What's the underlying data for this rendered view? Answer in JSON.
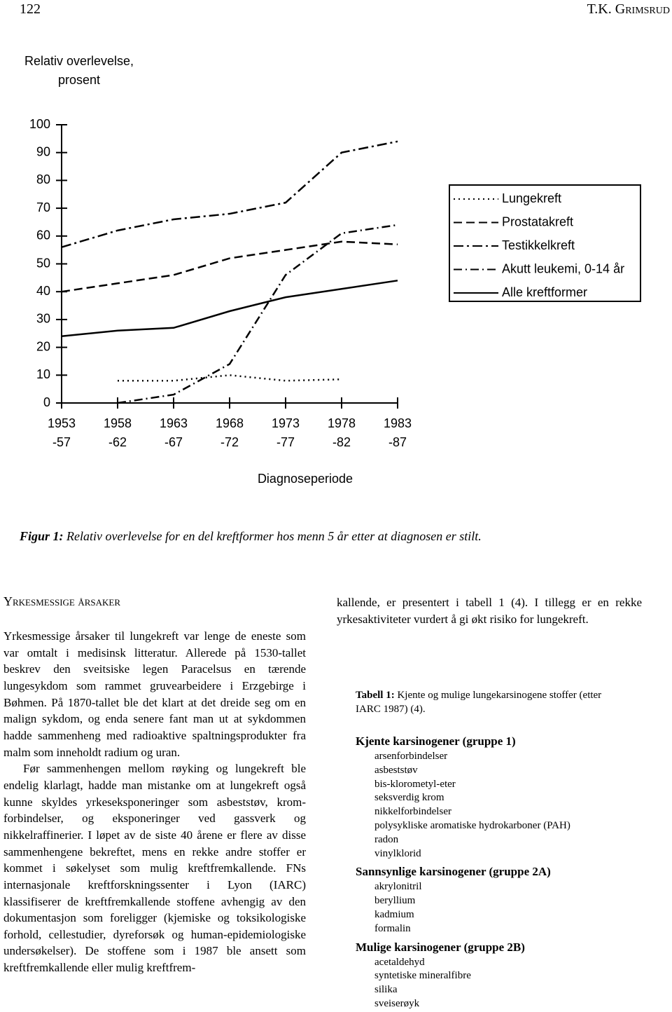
{
  "header": {
    "page_number": "122",
    "author": "T.K. Grimsrud"
  },
  "chart_data": {
    "type": "line",
    "ylabel": [
      "Relativ overlevelse,",
      "prosent"
    ],
    "xlabel": "Diagnoseperiode",
    "categories": [
      [
        "1953",
        "-57"
      ],
      [
        "1958",
        "-62"
      ],
      [
        "1963",
        "-67"
      ],
      [
        "1968",
        "-72"
      ],
      [
        "1973",
        "-77"
      ],
      [
        "1978",
        "-82"
      ],
      [
        "1983",
        "-87"
      ]
    ],
    "ylim": [
      0,
      100
    ],
    "yticks": [
      0,
      10,
      20,
      30,
      40,
      50,
      60,
      70,
      80,
      90,
      100
    ],
    "grid": false,
    "legend": "right",
    "series": [
      {
        "name": "Lungekreft",
        "color": "#000000",
        "dash": "2,5",
        "values": [
          null,
          8,
          8,
          10,
          8,
          8.5,
          null
        ]
      },
      {
        "name": "Prostatakreft",
        "color": "#000000",
        "dash": "12,6",
        "values": [
          40,
          43,
          46,
          52,
          55,
          58,
          57
        ]
      },
      {
        "name": "Testikkelkreft",
        "color": "#000000",
        "dash": "14,5,3,5",
        "values": [
          56,
          62,
          66,
          68,
          72,
          90,
          94
        ]
      },
      {
        "name": "Akutt leukemi, 0-14 år",
        "color": "#000000",
        "dash": "12,5,2,5",
        "values": [
          null,
          0,
          3,
          14,
          46,
          61,
          64
        ]
      },
      {
        "name": "Alle kreftformer",
        "color": "#000000",
        "dash": "none",
        "values": [
          24,
          26,
          27,
          33,
          38,
          41,
          44
        ]
      }
    ]
  },
  "caption": {
    "label": "Figur 1:",
    "text": "Relativ overlevelse for en del kreftformer hos menn 5 år etter at diagnosen er stilt."
  },
  "section": {
    "heading": "Yrkesmessige årsaker",
    "paragraphs": [
      "Yrkesmessige årsaker til lungekreft var lenge de eneste som var omtalt i medisinsk litteratur. Allerede på 1530-tallet beskrev den sveitsiske legen Paracelsus en tærende lungesykdom som rammet gruvearbeidere i Erzgebirge i Bøhmen. På 1870-tallet ble det klart at det dreide seg om en malign sykdom, og enda senere fant man ut at sykdommen hadde sammenheng med radioaktive spaltningsprodukter fra malm som inneholdt radium og uran.",
      "Før sammenhengen mellom røyking og lungekreft ble endelig klarlagt, hadde man mistanke om at lungekreft også kunne skyldes yrkeseksponeringer som asbeststøv, krom-forbindelser, og eksponeringer ved gassverk og nikkelraffinerier. I løpet av de siste 40 årene er flere av disse sammenhengene bekreftet, mens en rekke andre stoffer er kommet i søkelyset som mulig kreftfremkallende. FNs internasjonale kreftforskningssenter i Lyon (IARC) klassifiserer de kreftfremkallende stoffene avhengig av den dokumentasjon som foreligger (kjemiske og toksikologiske forhold, cellestudier, dyreforsøk og human-epidemiologiske undersøkelser). De stoffene som i 1987 ble ansett som kreftfremkallende eller mulig kreftfrem-",
      "kallende, er presentert i tabell 1 (4). I tillegg er en rekke yrkesaktiviteter vurdert å gi økt risiko for lungekreft."
    ]
  },
  "table": {
    "label": "Tabell 1:",
    "title": "Kjente og mulige lungekarsinogene stoffer (etter IARC 1987) (4).",
    "groups": [
      {
        "heading": "Kjente karsinogener (gruppe 1)",
        "items": [
          "arsenforbindelser",
          "asbeststøv",
          "bis-klorometyl-eter",
          "seksverdig krom",
          "nikkelforbindelser",
          "polysykliske aromatiske hydrokarboner (PAH)",
          "radon",
          "vinylklorid"
        ]
      },
      {
        "heading": "Sannsynlige karsinogener (gruppe 2A)",
        "items": [
          "akrylonitril",
          "beryllium",
          "kadmium",
          "formalin"
        ]
      },
      {
        "heading": "Mulige karsinogener (gruppe 2B)",
        "items": [
          "acetaldehyd",
          "syntetiske mineralfibre",
          "silika",
          "sveiserøyk"
        ]
      }
    ]
  }
}
